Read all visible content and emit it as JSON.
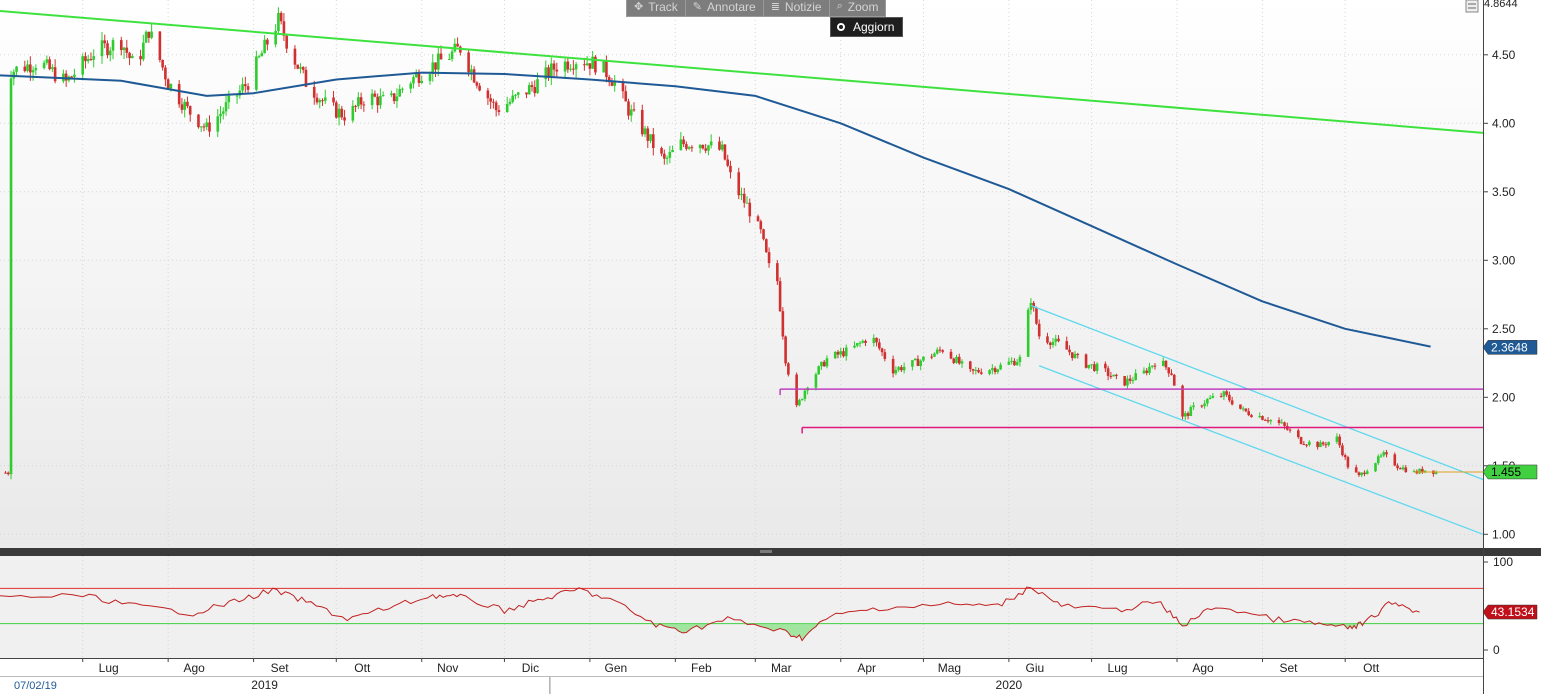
{
  "toolbar": {
    "buttons": [
      {
        "label": "Track",
        "icon": "crosshair-icon"
      },
      {
        "label": "Annotare",
        "icon": "pencil-icon"
      },
      {
        "label": "Notizie",
        "icon": "news-icon"
      },
      {
        "label": "Zoom",
        "icon": "magnifier-icon"
      }
    ],
    "refresh_label": "Aggiorn"
  },
  "chart_data": [
    {
      "type": "candlestick",
      "title": "",
      "x_range": [
        "2019-06-01",
        "2020-10-20"
      ],
      "ylim": [
        0.9,
        4.9
      ],
      "y_ticks": [
        "1.00",
        "1.50",
        "2.00",
        "2.50",
        "3.00",
        "3.50",
        "4.00",
        "4.50"
      ],
      "top_value_label": "4.8644",
      "month_labels": [
        {
          "label": "Lug",
          "date": "2019-07-01"
        },
        {
          "label": "Ago",
          "date": "2019-08-01"
        },
        {
          "label": "Set",
          "date": "2019-09-01"
        },
        {
          "label": "Ott",
          "date": "2019-10-01"
        },
        {
          "label": "Nov",
          "date": "2019-11-01"
        },
        {
          "label": "Dic",
          "date": "2019-12-01"
        },
        {
          "label": "Gen",
          "date": "2020-01-01"
        },
        {
          "label": "Feb",
          "date": "2020-02-01"
        },
        {
          "label": "Mar",
          "date": "2020-03-01"
        },
        {
          "label": "Apr",
          "date": "2020-04-01"
        },
        {
          "label": "Mag",
          "date": "2020-05-01"
        },
        {
          "label": "Giu",
          "date": "2020-06-01"
        },
        {
          "label": "Lug",
          "date": "2020-07-01"
        },
        {
          "label": "Ago",
          "date": "2020-08-01"
        },
        {
          "label": "Set",
          "date": "2020-09-01"
        },
        {
          "label": "Ott",
          "date": "2020-10-01"
        }
      ],
      "year_labels": [
        {
          "label": "2019",
          "date": "2019-09-05"
        },
        {
          "label": "2020",
          "date": "2020-06-01"
        }
      ],
      "start_date_label": "07/02/19",
      "price_points": [
        [
          "2019-06-05",
          4.38
        ],
        [
          "2019-06-15",
          4.45
        ],
        [
          "2019-06-25",
          4.3
        ],
        [
          "2019-07-05",
          4.52
        ],
        [
          "2019-07-15",
          4.6
        ],
        [
          "2019-07-20",
          4.4
        ],
        [
          "2019-07-25",
          4.68
        ],
        [
          "2019-08-01",
          4.3
        ],
        [
          "2019-08-08",
          4.1
        ],
        [
          "2019-08-15",
          3.96
        ],
        [
          "2019-08-22",
          4.12
        ],
        [
          "2019-08-30",
          4.3
        ],
        [
          "2019-09-05",
          4.55
        ],
        [
          "2019-09-10",
          4.75
        ],
        [
          "2019-09-15",
          4.5
        ],
        [
          "2019-09-20",
          4.3
        ],
        [
          "2019-09-28",
          4.12
        ],
        [
          "2019-10-05",
          4.05
        ],
        [
          "2019-10-12",
          4.2
        ],
        [
          "2019-10-20",
          4.15
        ],
        [
          "2019-10-27",
          4.3
        ],
        [
          "2019-11-03",
          4.4
        ],
        [
          "2019-11-10",
          4.48
        ],
        [
          "2019-11-15",
          4.55
        ],
        [
          "2019-11-20",
          4.35
        ],
        [
          "2019-11-28",
          4.1
        ],
        [
          "2019-12-05",
          4.18
        ],
        [
          "2019-12-12",
          4.28
        ],
        [
          "2019-12-20",
          4.42
        ],
        [
          "2019-12-28",
          4.47
        ],
        [
          "2020-01-05",
          4.42
        ],
        [
          "2020-01-10",
          4.3
        ],
        [
          "2020-01-15",
          4.1
        ],
        [
          "2020-01-22",
          3.9
        ],
        [
          "2020-01-28",
          3.72
        ],
        [
          "2020-02-03",
          3.85
        ],
        [
          "2020-02-10",
          3.86
        ],
        [
          "2020-02-18",
          3.8
        ],
        [
          "2020-02-22",
          3.55
        ],
        [
          "2020-02-27",
          3.4
        ],
        [
          "2020-03-03",
          3.2
        ],
        [
          "2020-03-06",
          2.95
        ],
        [
          "2020-03-09",
          2.85
        ],
        [
          "2020-03-12",
          2.28
        ],
        [
          "2020-03-16",
          1.92
        ],
        [
          "2020-03-20",
          2.1
        ],
        [
          "2020-03-27",
          2.28
        ],
        [
          "2020-04-05",
          2.35
        ],
        [
          "2020-04-12",
          2.45
        ],
        [
          "2020-04-20",
          2.2
        ],
        [
          "2020-04-28",
          2.25
        ],
        [
          "2020-05-08",
          2.35
        ],
        [
          "2020-05-18",
          2.18
        ],
        [
          "2020-05-28",
          2.22
        ],
        [
          "2020-06-05",
          2.28
        ],
        [
          "2020-06-09",
          2.72
        ],
        [
          "2020-06-12",
          2.45
        ],
        [
          "2020-06-20",
          2.38
        ],
        [
          "2020-06-28",
          2.25
        ],
        [
          "2020-07-05",
          2.2
        ],
        [
          "2020-07-12",
          2.1
        ],
        [
          "2020-07-20",
          2.18
        ],
        [
          "2020-07-25",
          2.28
        ],
        [
          "2020-07-30",
          2.18
        ],
        [
          "2020-08-03",
          1.85
        ],
        [
          "2020-08-07",
          1.92
        ],
        [
          "2020-08-12",
          1.98
        ],
        [
          "2020-08-18",
          2.02
        ],
        [
          "2020-08-25",
          1.9
        ],
        [
          "2020-09-02",
          1.85
        ],
        [
          "2020-09-08",
          1.8
        ],
        [
          "2020-09-15",
          1.68
        ],
        [
          "2020-09-22",
          1.65
        ],
        [
          "2020-09-28",
          1.7
        ],
        [
          "2020-10-02",
          1.5
        ],
        [
          "2020-10-06",
          1.42
        ],
        [
          "2020-10-10",
          1.5
        ],
        [
          "2020-10-15",
          1.58
        ],
        [
          "2020-10-20",
          1.5
        ],
        [
          "2020-10-26",
          1.45
        ],
        [
          "2020-10-30",
          1.47
        ],
        [
          "2020-11-05",
          1.45
        ]
      ],
      "moving_average": [
        [
          "2019-06-01",
          4.35
        ],
        [
          "2019-07-15",
          4.31
        ],
        [
          "2019-08-15",
          4.2
        ],
        [
          "2019-09-01",
          4.22
        ],
        [
          "2019-10-01",
          4.32
        ],
        [
          "2019-11-01",
          4.37
        ],
        [
          "2019-12-01",
          4.36
        ],
        [
          "2020-01-01",
          4.32
        ],
        [
          "2020-02-01",
          4.27
        ],
        [
          "2020-03-01",
          4.2
        ],
        [
          "2020-04-01",
          4.0
        ],
        [
          "2020-05-01",
          3.75
        ],
        [
          "2020-06-01",
          3.52
        ],
        [
          "2020-07-01",
          3.25
        ],
        [
          "2020-08-01",
          2.97
        ],
        [
          "2020-09-01",
          2.7
        ],
        [
          "2020-10-01",
          2.5
        ],
        [
          "2020-11-01",
          2.37
        ]
      ],
      "trendline": [
        [
          "2019-06-01",
          4.82
        ],
        [
          "2020-11-20",
          3.93
        ]
      ],
      "channel_upper": [
        [
          "2020-06-09",
          2.67
        ],
        [
          "2020-11-20",
          1.4
        ]
      ],
      "channel_lower": [
        [
          "2020-06-12",
          2.23
        ],
        [
          "2020-11-20",
          1.0
        ]
      ],
      "support_levels": [
        {
          "value": 2.06,
          "from": "2020-03-10",
          "color": "#c040c0"
        },
        {
          "value": 1.78,
          "from": "2020-03-18",
          "color": "#e0197d"
        }
      ],
      "last_price_label": {
        "value": 1.455,
        "text": "1.455",
        "color": "#40d040"
      },
      "ma_value_label": {
        "value": 2.3648,
        "text": "2.3648",
        "color": "#1f5a96"
      }
    },
    {
      "type": "line",
      "title": "",
      "ylim": [
        0,
        100
      ],
      "y_ticks": [
        "100",
        "0"
      ],
      "upper_band": 70,
      "lower_band": 30,
      "line_color": "#c02020",
      "value_label": {
        "value": 43.1534,
        "text": "43.1534",
        "color": "#c0101a"
      },
      "points": [
        [
          "2019-06-01",
          60
        ],
        [
          "2019-07-01",
          62
        ],
        [
          "2019-07-20",
          50
        ],
        [
          "2019-08-10",
          42
        ],
        [
          "2019-08-25",
          55
        ],
        [
          "2019-09-08",
          68
        ],
        [
          "2019-09-20",
          55
        ],
        [
          "2019-10-05",
          35
        ],
        [
          "2019-10-20",
          48
        ],
        [
          "2019-11-05",
          62
        ],
        [
          "2019-11-15",
          60
        ],
        [
          "2019-12-01",
          45
        ],
        [
          "2019-12-15",
          58
        ],
        [
          "2019-12-28",
          69
        ],
        [
          "2020-01-10",
          55
        ],
        [
          "2020-01-25",
          28
        ],
        [
          "2020-02-05",
          22
        ],
        [
          "2020-02-20",
          35
        ],
        [
          "2020-03-10",
          22
        ],
        [
          "2020-03-18",
          14
        ],
        [
          "2020-03-28",
          38
        ],
        [
          "2020-04-15",
          48
        ],
        [
          "2020-05-10",
          52
        ],
        [
          "2020-05-28",
          50
        ],
        [
          "2020-06-09",
          72
        ],
        [
          "2020-06-20",
          50
        ],
        [
          "2020-07-10",
          45
        ],
        [
          "2020-07-25",
          55
        ],
        [
          "2020-08-03",
          28
        ],
        [
          "2020-08-15",
          50
        ],
        [
          "2020-09-05",
          35
        ],
        [
          "2020-09-20",
          30
        ],
        [
          "2020-10-02",
          25
        ],
        [
          "2020-10-08",
          30
        ],
        [
          "2020-10-18",
          55
        ],
        [
          "2020-10-28",
          43
        ]
      ]
    }
  ]
}
